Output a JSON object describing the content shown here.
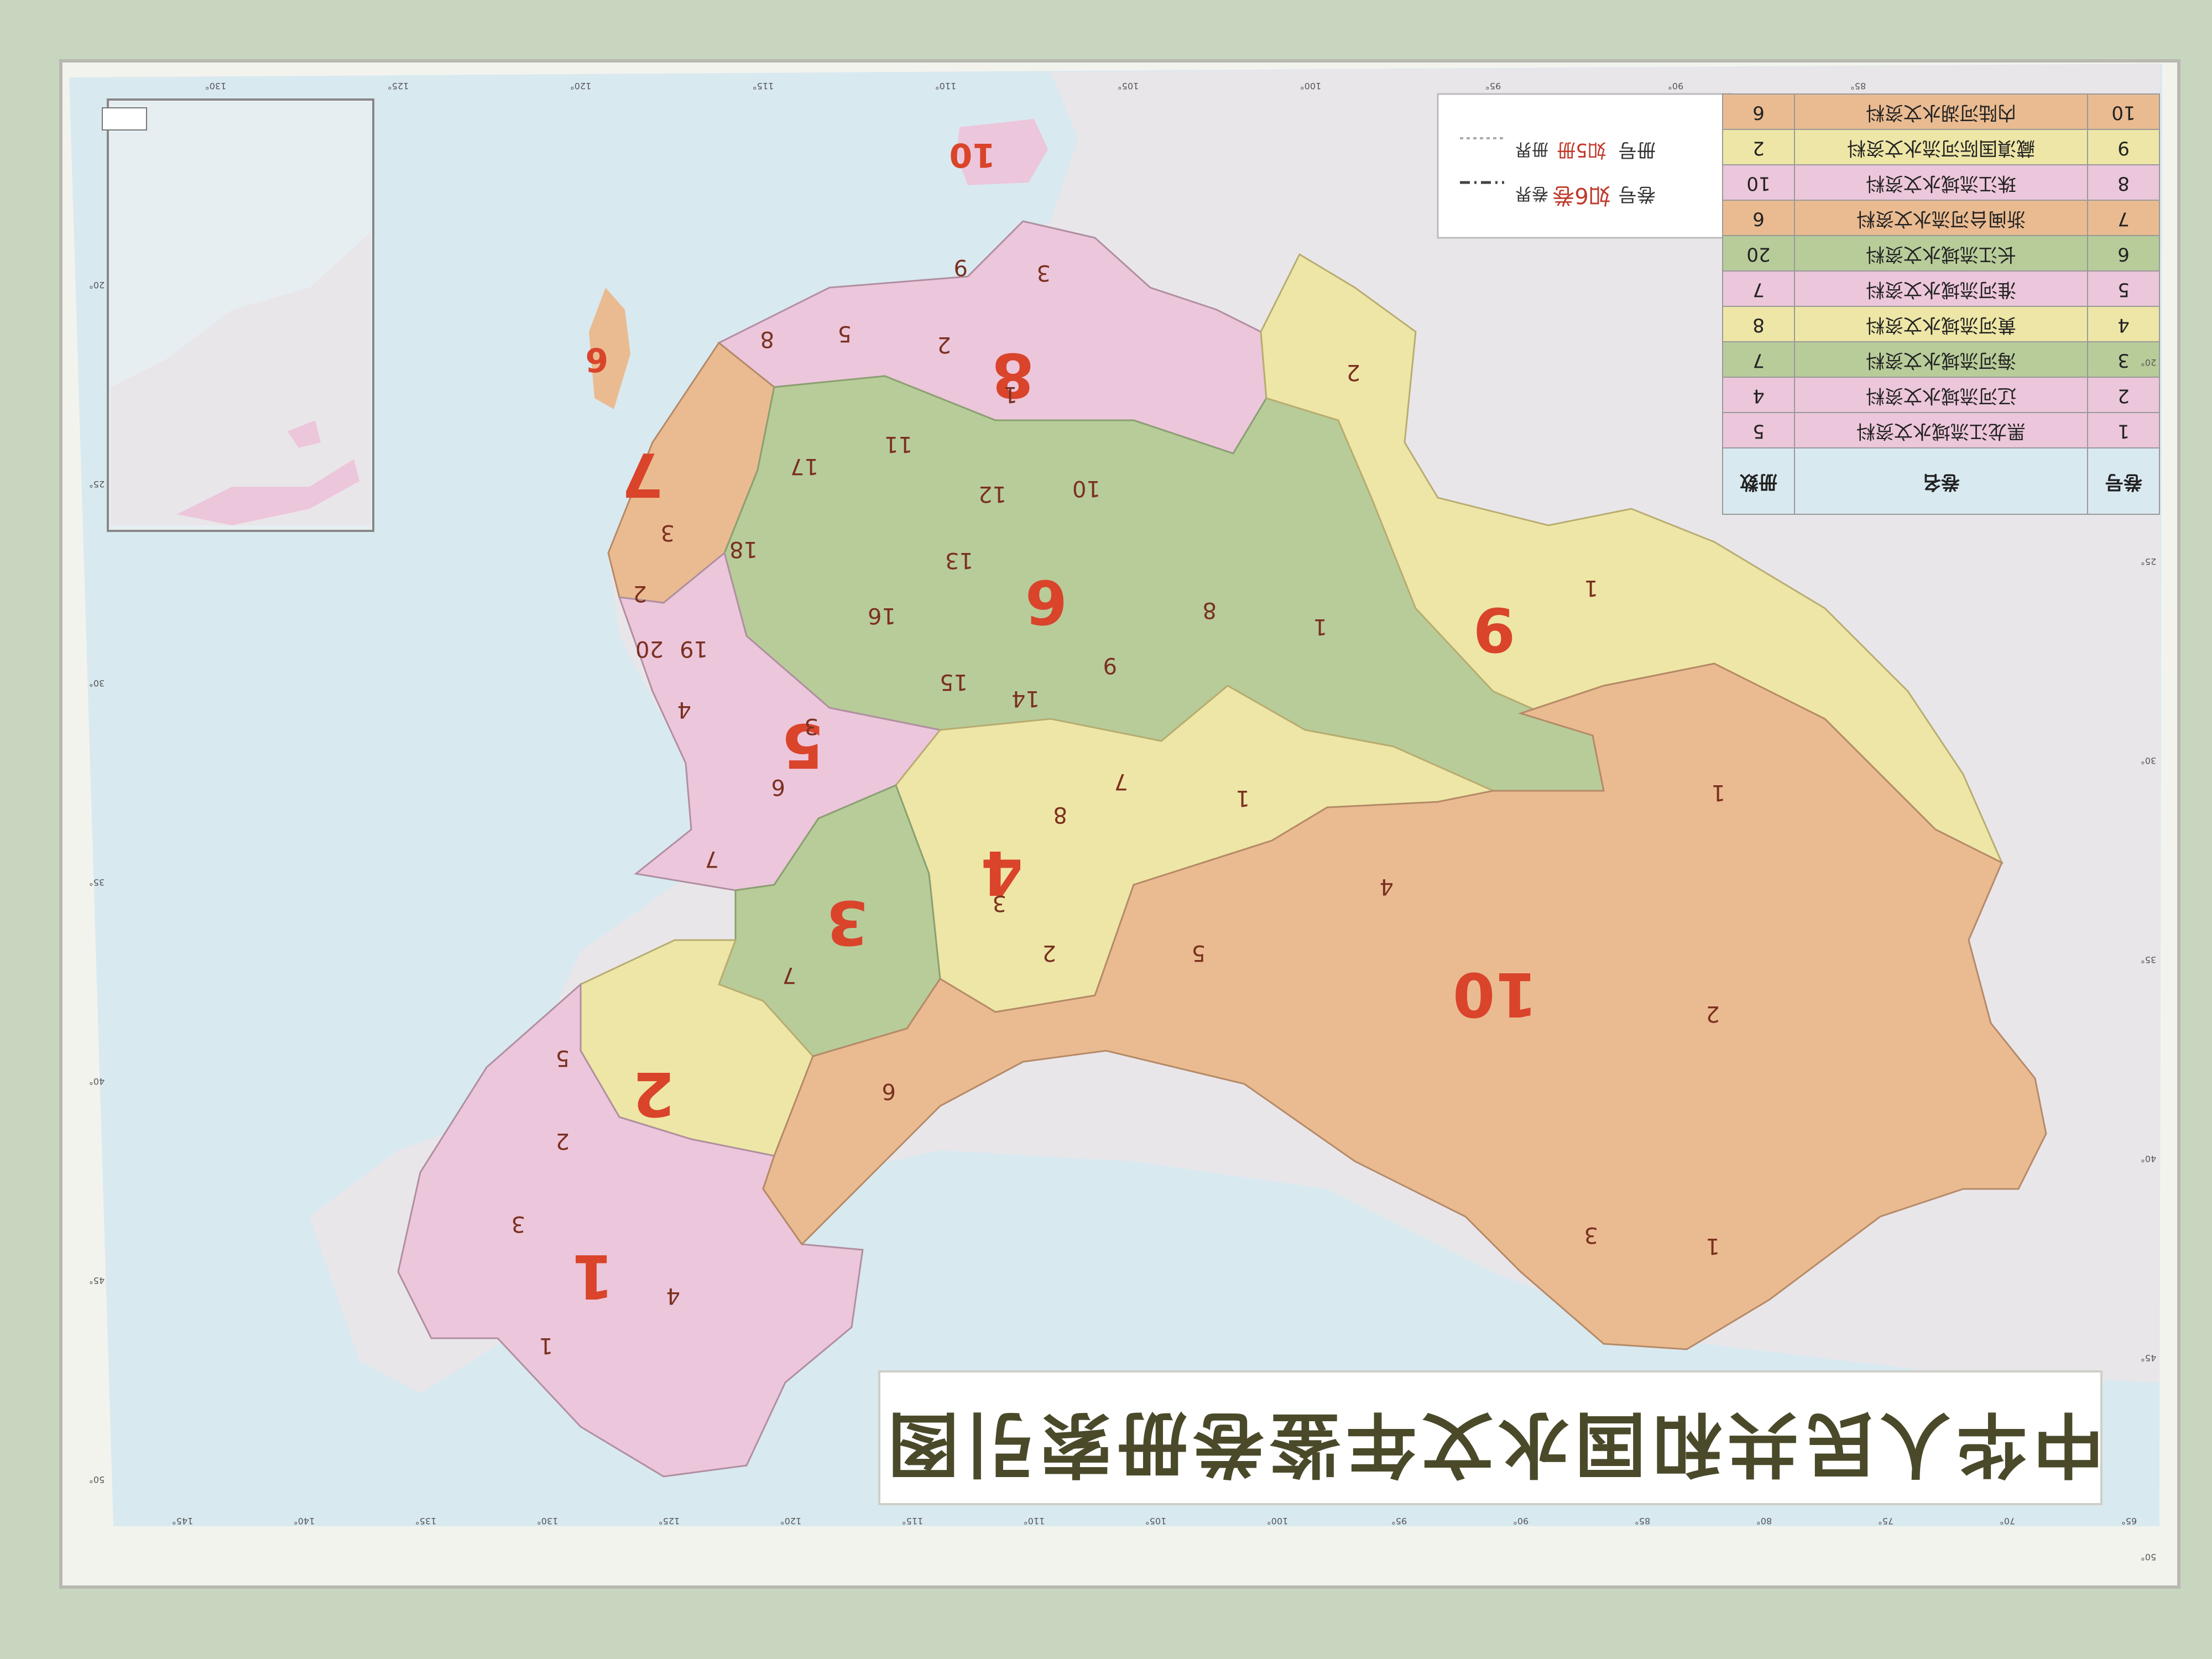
{
  "title": "中华人民共和国水文年鉴卷册索引图",
  "colors": {
    "wall": "#c9d6c0",
    "ocean": "#d6e7ef",
    "land": "#ebe8ea",
    "pink": "#ecc6db",
    "yellow": "#eee6a6",
    "green": "#b8cc9a",
    "orange": "#eabb91",
    "numeral": "#d9442b"
  },
  "legend": {
    "headers": [
      "卷号",
      "卷名",
      "册数"
    ],
    "rows": [
      {
        "no": "1",
        "name": "黑龙江流域水文资料",
        "count": "5"
      },
      {
        "no": "2",
        "name": "辽河流域水文资料",
        "count": "4"
      },
      {
        "no": "3",
        "name": "海河流域水文资料",
        "count": "7"
      },
      {
        "no": "4",
        "name": "黄河流域水文资料",
        "count": "8"
      },
      {
        "no": "5",
        "name": "淮河流域水文资料",
        "count": "7"
      },
      {
        "no": "6",
        "name": "长江流域水文资料",
        "count": "20"
      },
      {
        "no": "7",
        "name": "浙闽台河流水文资料",
        "count": "6"
      },
      {
        "no": "8",
        "name": "珠江流域水文资料",
        "count": "10"
      },
      {
        "no": "9",
        "name": "藏滇国际河流水文资料",
        "count": "2"
      },
      {
        "no": "10",
        "name": "内陆河湖水文资料",
        "count": "6"
      }
    ]
  },
  "key": {
    "volume_label": "卷号",
    "volume_example": "如6卷",
    "booklet_label": "册号",
    "booklet_example": "如5册",
    "volume_boundary": "卷界",
    "booklet_boundary": "册界"
  },
  "regions": [
    {
      "id": "1",
      "color": "pink"
    },
    {
      "id": "2",
      "color": "yellow"
    },
    {
      "id": "3",
      "color": "green"
    },
    {
      "id": "4",
      "color": "yellow"
    },
    {
      "id": "5",
      "color": "pink"
    },
    {
      "id": "6",
      "color": "green"
    },
    {
      "id": "7",
      "color": "orange"
    },
    {
      "id": "8",
      "color": "pink"
    },
    {
      "id": "9",
      "color": "yellow"
    },
    {
      "id": "10",
      "color": "orange"
    }
  ],
  "subdivision_numbers": [
    "1",
    "2",
    "3",
    "4",
    "5",
    "6",
    "7",
    "8",
    "9",
    "10",
    "11",
    "12",
    "13",
    "14",
    "15",
    "16",
    "17",
    "18",
    "19",
    "20"
  ],
  "lon_ticks_bottom": [
    "145°",
    "140°",
    "135°",
    "130°",
    "125°",
    "120°",
    "115°",
    "110°",
    "105°",
    "100°",
    "95°",
    "90°",
    "85°",
    "80°",
    "75°",
    "70°",
    "65°"
  ],
  "lon_ticks_top": [
    "130°",
    "125°",
    "120°",
    "115°",
    "110°",
    "105°",
    "100°",
    "95°",
    "90°",
    "85°"
  ],
  "lat_ticks": [
    "20°",
    "25°",
    "30°",
    "35°",
    "40°",
    "45°",
    "50°"
  ]
}
